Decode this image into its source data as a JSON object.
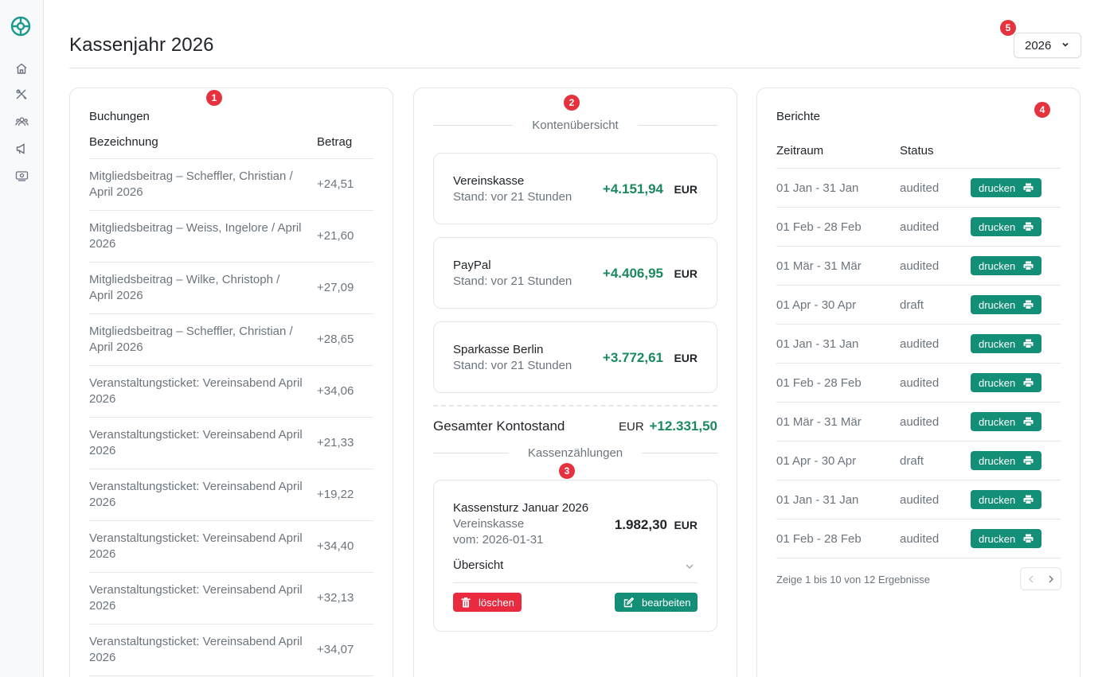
{
  "header": {
    "title": "Kassenjahr 2026",
    "year_select": "2026"
  },
  "markers": [
    "1",
    "2",
    "3",
    "4",
    "5"
  ],
  "sidebar": {
    "icons": [
      "home-icon",
      "tools-icon",
      "users-icon",
      "megaphone-icon",
      "cash-icon"
    ]
  },
  "buchungen": {
    "title": "Buchungen",
    "columns": [
      "Bezeichnung",
      "Betrag"
    ],
    "rows": [
      {
        "name": "Mitgliedsbeitrag – Scheffler, Christian / April 2026",
        "amount": "+24,51"
      },
      {
        "name": "Mitgliedsbeitrag – Weiss, Ingelore / April 2026",
        "amount": "+21,60"
      },
      {
        "name": "Mitgliedsbeitrag – Wilke, Christoph / April 2026",
        "amount": "+27,09"
      },
      {
        "name": "Mitgliedsbeitrag – Scheffler, Christian / April 2026",
        "amount": "+28,65"
      },
      {
        "name": "Veranstaltungsticket: Vereinsabend April 2026",
        "amount": "+34,06"
      },
      {
        "name": "Veranstaltungsticket: Vereinsabend April 2026",
        "amount": "+21,33"
      },
      {
        "name": "Veranstaltungsticket: Vereinsabend April 2026",
        "amount": "+19,22"
      },
      {
        "name": "Veranstaltungsticket: Vereinsabend April 2026",
        "amount": "+34,40"
      },
      {
        "name": "Veranstaltungsticket: Vereinsabend April 2026",
        "amount": "+32,13"
      },
      {
        "name": "Veranstaltungsticket: Vereinsabend April 2026",
        "amount": "+34,07"
      }
    ]
  },
  "konten": {
    "title": "Kontenübersicht",
    "accounts": [
      {
        "name": "Vereinskasse",
        "status": "Stand: vor 21 Stunden",
        "value": "+4.151,94",
        "currency": "EUR"
      },
      {
        "name": "PayPal",
        "status": "Stand: vor 21 Stunden",
        "value": "+4.406,95",
        "currency": "EUR"
      },
      {
        "name": "Sparkasse Berlin",
        "status": "Stand: vor 21 Stunden",
        "value": "+3.772,61",
        "currency": "EUR"
      }
    ],
    "total_label": "Gesamter Kontostand",
    "total_currency": "EUR",
    "total_value": "+12.331,50",
    "count_title": "Kassenzählungen",
    "count": {
      "title": "Kassensturz Januar 2026",
      "account": "Vereinskasse",
      "date": "vom: 2026-01-31",
      "value": "1.982,30",
      "currency": "EUR",
      "overview": "Übersicht",
      "delete_label": "löschen",
      "edit_label": "bearbeiten"
    }
  },
  "berichte": {
    "title": "Berichte",
    "columns": [
      "Zeitraum",
      "Status"
    ],
    "print_label": "drucken",
    "rows": [
      {
        "period": "01 Jan - 31 Jan",
        "status": "audited"
      },
      {
        "period": "01 Feb - 28 Feb",
        "status": "audited"
      },
      {
        "period": "01 Mär - 31 Mär",
        "status": "audited"
      },
      {
        "period": "01 Apr - 30 Apr",
        "status": "draft"
      },
      {
        "period": "01 Jan - 31 Jan",
        "status": "audited"
      },
      {
        "period": "01 Feb - 28 Feb",
        "status": "audited"
      },
      {
        "period": "01 Mär - 31 Mär",
        "status": "audited"
      },
      {
        "period": "01 Apr - 30 Apr",
        "status": "draft"
      },
      {
        "period": "01 Jan - 31 Jan",
        "status": "audited"
      },
      {
        "period": "01 Feb - 28 Feb",
        "status": "audited"
      }
    ],
    "pagination_text": "Zeige 1 bis 10 von 12 Ergebnisse"
  },
  "colors": {
    "accent": "#138e77",
    "positive": "#1a8a5e",
    "danger": "#ea2a3f",
    "marker": "#e5323f"
  }
}
